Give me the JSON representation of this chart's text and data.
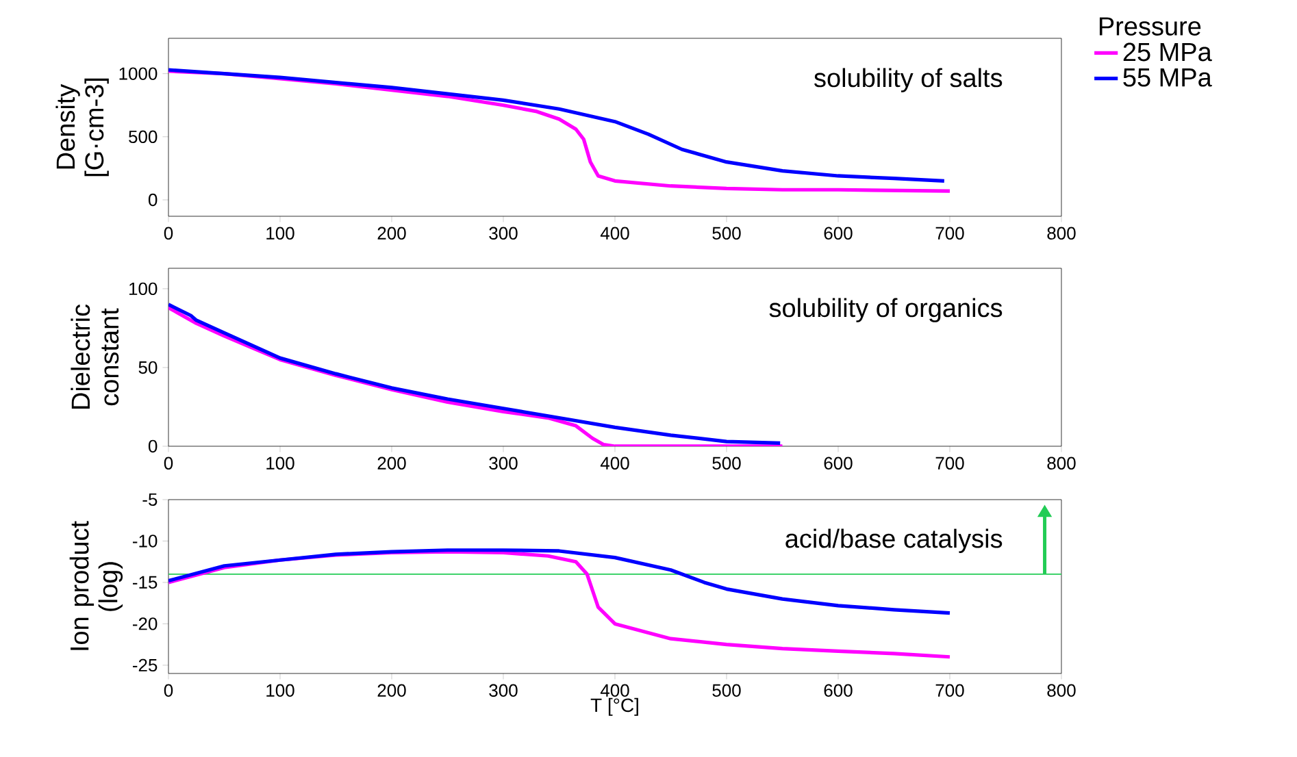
{
  "chart_data": [
    {
      "type": "line",
      "ylabel": "Density [G·cm-3]",
      "legend_title": "Pressure",
      "legend": "right",
      "marker": "none",
      "line_style": "solid",
      "xlim": [
        0,
        800
      ],
      "xticks": [
        0,
        100,
        200,
        300,
        400,
        500,
        600,
        700,
        800
      ],
      "ylim": [
        -130,
        1280
      ],
      "yticks": [
        0,
        500,
        1000
      ],
      "annotations": [
        "solubility of salts"
      ],
      "series": [
        {
          "name": "25 MPa",
          "color": "#ff00ff",
          "x": [
            0,
            50,
            100,
            150,
            200,
            250,
            300,
            330,
            350,
            365,
            372,
            378,
            385,
            400,
            450,
            500,
            550,
            600,
            700
          ],
          "values": [
            1020,
            1000,
            960,
            920,
            870,
            820,
            750,
            700,
            640,
            560,
            480,
            300,
            190,
            150,
            110,
            90,
            80,
            80,
            70
          ]
        },
        {
          "name": "55 MPa",
          "color": "#0000ff",
          "x": [
            0,
            50,
            100,
            150,
            200,
            250,
            300,
            350,
            400,
            430,
            460,
            500,
            550,
            600,
            650,
            695
          ],
          "values": [
            1030,
            1000,
            970,
            930,
            890,
            840,
            790,
            720,
            620,
            520,
            400,
            300,
            230,
            190,
            170,
            150
          ]
        }
      ]
    },
    {
      "type": "line",
      "ylabel": "Dielectric constant",
      "marker": "none",
      "line_style": "solid",
      "xlim": [
        0,
        800
      ],
      "xticks": [
        0,
        100,
        200,
        300,
        400,
        500,
        600,
        700,
        800
      ],
      "ylim": [
        0,
        113
      ],
      "yticks": [
        0,
        50,
        100
      ],
      "annotations": [
        "solubility of organics"
      ],
      "series": [
        {
          "color": "#ff00ff",
          "x": [
            0,
            25,
            50,
            100,
            150,
            200,
            250,
            300,
            340,
            365,
            380,
            390,
            400,
            550
          ],
          "values": [
            88,
            78,
            70,
            55,
            45,
            36,
            28,
            22,
            18,
            13,
            5,
            1,
            0,
            0
          ]
        },
        {
          "color": "#0000ff",
          "x": [
            0,
            20,
            25,
            50,
            100,
            150,
            200,
            250,
            300,
            350,
            400,
            450,
            500,
            548
          ],
          "values": [
            90,
            83,
            80,
            72,
            56,
            46,
            37,
            30,
            24,
            18,
            12,
            7,
            3,
            2
          ]
        }
      ]
    },
    {
      "type": "line",
      "xlabel": "T [°C]",
      "ylabel": "Ion product (log)",
      "marker": "none",
      "line_style": "solid",
      "xlim": [
        0,
        800
      ],
      "xticks": [
        0,
        100,
        200,
        300,
        400,
        500,
        600,
        700,
        800
      ],
      "ylim": [
        -26,
        -5
      ],
      "yticks": [
        -25,
        -20,
        -15,
        -10,
        -5
      ],
      "annotations": [
        "acid/base catalysis"
      ],
      "ref_lines": [
        {
          "axis": "y",
          "value": -14,
          "color": "#22cc55"
        }
      ],
      "series": [
        {
          "color": "#ff00ff",
          "x": [
            0,
            50,
            100,
            150,
            200,
            250,
            300,
            340,
            365,
            375,
            380,
            385,
            400,
            450,
            500,
            550,
            600,
            650,
            700
          ],
          "values": [
            -15,
            -13.2,
            -12.3,
            -11.7,
            -11.4,
            -11.3,
            -11.4,
            -11.8,
            -12.5,
            -14,
            -16,
            -18,
            -20,
            -21.8,
            -22.5,
            -23,
            -23.3,
            -23.6,
            -24
          ]
        },
        {
          "color": "#0000ff",
          "x": [
            0,
            50,
            100,
            150,
            200,
            250,
            300,
            350,
            400,
            450,
            480,
            500,
            550,
            600,
            650,
            700
          ],
          "values": [
            -14.8,
            -13,
            -12.3,
            -11.6,
            -11.3,
            -11.1,
            -11.1,
            -11.2,
            -12,
            -13.5,
            -15,
            -15.8,
            -17,
            -17.8,
            -18.3,
            -18.7
          ]
        }
      ]
    }
  ]
}
